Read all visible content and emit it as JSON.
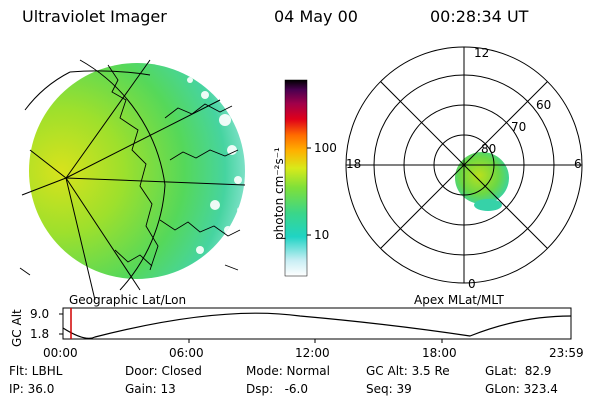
{
  "header": {
    "instrument": "Ultraviolet Imager",
    "date": "04 May 00",
    "time": "00:28:34 UT"
  },
  "colorbar": {
    "unit_label": "photon cm⁻²s⁻¹",
    "ticks": [
      "100",
      "10"
    ]
  },
  "polar_plot": {
    "mlt_labels": [
      "12",
      "18",
      "6",
      "0"
    ],
    "mlat_labels": [
      "60",
      "70",
      "80"
    ]
  },
  "left_panel_label": "Geographic Lat/Lon",
  "right_panel_label": "Apex MLat/MLT",
  "orbit_plot": {
    "ylabel": "GC Alt",
    "y_ticks": [
      "9.0",
      "1.8"
    ],
    "x_ticks": [
      "00:00",
      "06:00",
      "12:00",
      "18:00",
      "23:59"
    ]
  },
  "info_rows": [
    [
      "Flt: LBHL",
      "Door: Closed",
      "Mode: Normal",
      "GC Alt: 3.5 Re",
      "GLat:  82.9"
    ],
    [
      "IP: 36.0",
      "Gain: 13",
      "Dsp:   -6.0",
      "Seq: 39",
      "GLon: 323.4"
    ]
  ]
}
